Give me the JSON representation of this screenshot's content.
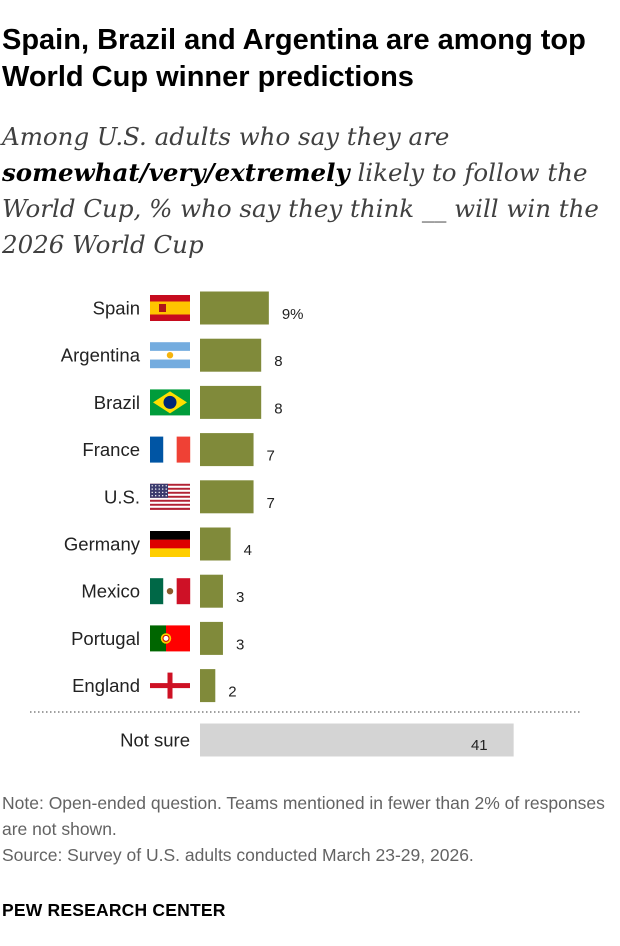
{
  "title": "Spain, Brazil and Argentina are among top World Cup winner predictions",
  "subtitle": {
    "prefix": "Among U.S. adults who say they are ",
    "emphasis": "somewhat/very/extremely",
    "suffix": " likely to follow the World Cup, % who say they think __ will win the 2026 World Cup"
  },
  "chart_data": {
    "type": "bar",
    "orientation": "horizontal",
    "categories": [
      "Spain",
      "Argentina",
      "Brazil",
      "France",
      "U.S.",
      "Germany",
      "Mexico",
      "Portugal",
      "England"
    ],
    "values": [
      9,
      8,
      8,
      7,
      7,
      4,
      3,
      3,
      2
    ],
    "value_labels": [
      "9%",
      "8",
      "8",
      "7",
      "7",
      "4",
      "3",
      "3",
      "2"
    ],
    "flags": [
      "spain-flag-icon",
      "argentina-flag-icon",
      "brazil-flag-icon",
      "france-flag-icon",
      "us-flag-icon",
      "germany-flag-icon",
      "mexico-flag-icon",
      "portugal-flag-icon",
      "england-flag-icon"
    ],
    "other": {
      "category": "Not sure",
      "value": 41,
      "label": "41"
    },
    "bar_color": "#808a3a",
    "other_bar_color": "#d4d4d4",
    "grid": false
  },
  "note": "Note: Open-ended question. Teams mentioned in fewer than 2% of responses are not shown.",
  "source": "Source: Survey of U.S. adults conducted March 23-29, 2026.",
  "brand": "PEW RESEARCH CENTER"
}
